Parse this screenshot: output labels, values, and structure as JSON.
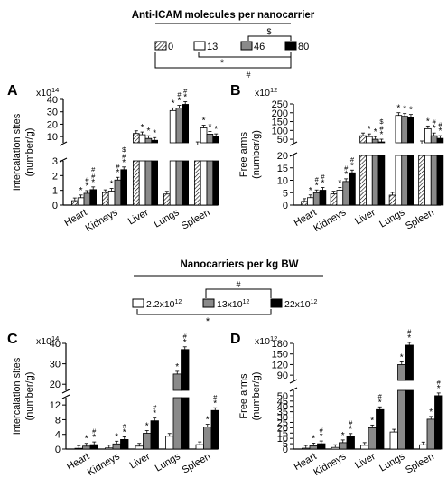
{
  "legend_top": {
    "title": "Anti-ICAM molecules per nanocarrier",
    "items": [
      "0",
      "13",
      "46",
      "80"
    ],
    "sig": [
      "$",
      "*",
      "#"
    ]
  },
  "legend_bottom": {
    "title": "Nanocarriers per kg BW",
    "items": [
      "2.2x10",
      "13x10",
      "22x10"
    ],
    "sups": [
      "12",
      "12",
      "12"
    ],
    "sig": [
      "#",
      "*"
    ]
  },
  "colors": {
    "white": "#ffffff",
    "gray": "#8a8a8a",
    "black": "#000000",
    "hatch": "#000000"
  },
  "chart_data": [
    {
      "id": "A",
      "type": "bar",
      "ylabel": [
        "Intercalation sites",
        "(number/g)"
      ],
      "multiplier": "x10",
      "multiplier_exp": "14",
      "categories": [
        "Heart",
        "Kidneys",
        "Liver",
        "Lungs",
        "Spleen"
      ],
      "broken_axis": true,
      "ylim_lower": [
        0,
        3
      ],
      "yticks_lower": [
        0,
        1,
        2,
        3
      ],
      "ylim_upper": [
        5,
        40
      ],
      "yticks_upper": [
        10,
        20,
        30,
        40
      ],
      "series": [
        {
          "name": "0",
          "style": "hatch",
          "values": [
            0.3,
            0.85,
            12.5,
            0.75,
            3.5
          ]
        },
        {
          "name": "13",
          "style": "white",
          "values": [
            0.5,
            0.95,
            11.5,
            31,
            17
          ]
        },
        {
          "name": "46",
          "style": "gray",
          "values": [
            0.8,
            1.7,
            8.5,
            33,
            12
          ]
        },
        {
          "name": "80",
          "style": "black",
          "values": [
            1.05,
            2.4,
            7,
            36,
            10
          ]
        }
      ],
      "annotations": [
        [
          "",
          "*",
          "#\n*",
          "#\n#\n*"
        ],
        [
          "",
          "*",
          "#\n*",
          "$\n#\n*"
        ],
        [
          "",
          "*",
          "*",
          "*"
        ],
        [
          "",
          "*",
          "#\n*",
          "#\n*"
        ],
        [
          "",
          "*",
          "*",
          "*"
        ]
      ]
    },
    {
      "id": "B",
      "type": "bar",
      "ylabel": [
        "Free arms",
        "(number/g)"
      ],
      "multiplier": "x10",
      "multiplier_exp": "12",
      "categories": [
        "Heart",
        "Kidneys",
        "Liver",
        "Lungs",
        "Spleen"
      ],
      "broken_axis": true,
      "ylim_lower": [
        0,
        20
      ],
      "yticks_lower": [
        0,
        5,
        10,
        15,
        20
      ],
      "ylim_upper": [
        30,
        250
      ],
      "yticks_upper": [
        50,
        100,
        150,
        200,
        250
      ],
      "series": [
        {
          "name": "0",
          "style": "hatch",
          "values": [
            1.5,
            4.5,
            70,
            4,
            25
          ]
        },
        {
          "name": "13",
          "style": "white",
          "values": [
            3,
            6,
            65,
            185,
            110
          ]
        },
        {
          "name": "46",
          "style": "gray",
          "values": [
            5,
            9.5,
            50,
            180,
            70
          ]
        },
        {
          "name": "80",
          "style": "black",
          "values": [
            6,
            13,
            35,
            175,
            55
          ]
        }
      ],
      "annotations": [
        [
          "",
          "*",
          "#\n*",
          "#\n*"
        ],
        [
          "",
          "*",
          "#\n*",
          "#\n*"
        ],
        [
          "",
          "*",
          "*",
          "$\n#\n*"
        ],
        [
          "",
          "*",
          "*",
          "*"
        ],
        [
          "",
          "*",
          "#\n*",
          "#\n*"
        ]
      ]
    },
    {
      "id": "C",
      "type": "bar",
      "ylabel": [
        "Intercalation sites",
        "(number/g)"
      ],
      "multiplier": "x10",
      "multiplier_exp": "14",
      "categories": [
        "Heart",
        "Kidneys",
        "Liver",
        "Lungs",
        "Spleen"
      ],
      "broken_axis": true,
      "ylim_lower": [
        0,
        14
      ],
      "yticks_lower": [
        0,
        4,
        8,
        12
      ],
      "ylim_upper": [
        17,
        40
      ],
      "yticks_upper": [
        20,
        30,
        40
      ],
      "series": [
        {
          "name": "2.2x10",
          "style": "white",
          "values": [
            0.2,
            0.3,
            0.8,
            3.5,
            1.2
          ]
        },
        {
          "name": "13x10",
          "style": "gray",
          "values": [
            0.8,
            1.4,
            4.3,
            25,
            6
          ]
        },
        {
          "name": "22x10",
          "style": "black",
          "values": [
            1.2,
            2.6,
            7.7,
            37,
            10.5
          ]
        }
      ],
      "annotations": [
        [
          "",
          "*",
          "#\n*"
        ],
        [
          "",
          "*",
          "#\n*"
        ],
        [
          "",
          "*",
          "#\n*"
        ],
        [
          "",
          "*",
          "#\n*"
        ],
        [
          "",
          "*",
          "#\n*"
        ]
      ]
    },
    {
      "id": "D",
      "type": "bar",
      "ylabel": [
        "Free arms",
        "(number/g)"
      ],
      "multiplier": "x10",
      "multiplier_exp": "12",
      "categories": [
        "Heart",
        "Kidneys",
        "Liver",
        "Lungs",
        "Spleen"
      ],
      "broken_axis": true,
      "ylim_lower": [
        0,
        55
      ],
      "yticks_lower": [
        0,
        5,
        10,
        15,
        20,
        25,
        30,
        35,
        40,
        45,
        50
      ],
      "ylim_upper": [
        75,
        180
      ],
      "yticks_upper": [
        90,
        120,
        150,
        180
      ],
      "series": [
        {
          "name": "2.2x10",
          "style": "white",
          "values": [
            0.8,
            1.5,
            3.5,
            16,
            4
          ]
        },
        {
          "name": "13x10",
          "style": "gray",
          "values": [
            3,
            6,
            20,
            120,
            28
          ]
        },
        {
          "name": "22x10",
          "style": "black",
          "values": [
            5,
            12,
            37,
            175,
            50
          ]
        }
      ],
      "annotations": [
        [
          "",
          "*",
          "#\n*"
        ],
        [
          "",
          "*",
          "#\n*"
        ],
        [
          "",
          "*",
          "#\n*"
        ],
        [
          "",
          "*",
          "#\n*"
        ],
        [
          "",
          "*",
          "#\n*"
        ]
      ]
    }
  ]
}
